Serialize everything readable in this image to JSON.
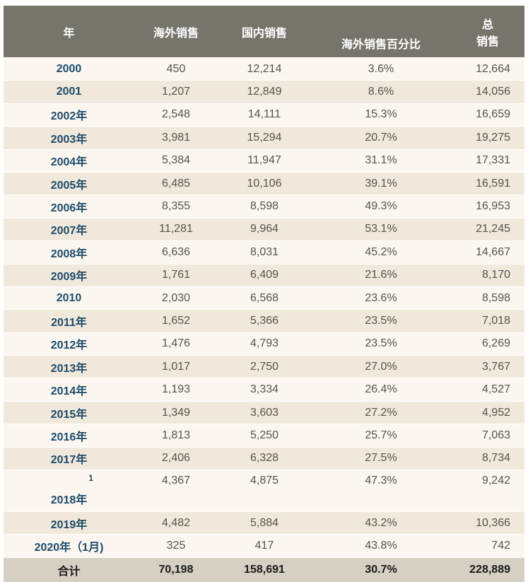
{
  "headers": {
    "year": "年",
    "overseas": "海外销售",
    "domestic": "国内销售",
    "pct": "海外销售百分比",
    "total_line1": "总",
    "total_line2": "销售"
  },
  "rows": [
    {
      "year": "2000",
      "overseas": "450",
      "domestic": "12,214",
      "pct": "3.6%",
      "total": "12,664"
    },
    {
      "year": "2001",
      "overseas": "1,207",
      "domestic": "12,849",
      "pct": "8.6%",
      "total": "14,056"
    },
    {
      "year": "2002年",
      "overseas": "2,548",
      "domestic": "14,111",
      "pct": "15.3%",
      "total": "16,659"
    },
    {
      "year": "2003年",
      "overseas": "3,981",
      "domestic": "15,294",
      "pct": "20.7%",
      "total": "19,275"
    },
    {
      "year": "2004年",
      "overseas": "5,384",
      "domestic": "11,947",
      "pct": "31.1%",
      "total": "17,331"
    },
    {
      "year": "2005年",
      "overseas": "6,485",
      "domestic": "10,106",
      "pct": "39.1%",
      "total": "16,591"
    },
    {
      "year": "2006年",
      "overseas": "8,355",
      "domestic": "8,598",
      "pct": "49.3%",
      "total": "16,953"
    },
    {
      "year": "2007年",
      "overseas": "11,281",
      "domestic": "9,964",
      "pct": "53.1%",
      "total": "21,245"
    },
    {
      "year": "2008年",
      "overseas": "6,636",
      "domestic": "8,031",
      "pct": "45.2%",
      "total": "14,667"
    },
    {
      "year": "2009年",
      "overseas": "1,761",
      "domestic": "6,409",
      "pct": "21.6%",
      "total": "8,170"
    },
    {
      "year": "2010",
      "overseas": "2,030",
      "domestic": "6,568",
      "pct": "23.6%",
      "total": "8,598"
    },
    {
      "year": "2011年",
      "overseas": "1,652",
      "domestic": "5,366",
      "pct": "23.5%",
      "total": "7,018"
    },
    {
      "year": "2012年",
      "overseas": "1,476",
      "domestic": "4,793",
      "pct": "23.5%",
      "total": "6,269"
    },
    {
      "year": "2013年",
      "overseas": "1,017",
      "domestic": "2,750",
      "pct": "27.0%",
      "total": "3,767"
    },
    {
      "year": "2014年",
      "overseas": "1,193",
      "domestic": "3,334",
      "pct": "26.4%",
      "total": "4,527"
    },
    {
      "year": "2015年",
      "overseas": "1,349",
      "domestic": "3,603",
      "pct": "27.2%",
      "total": "4,952"
    },
    {
      "year": "2016年",
      "overseas": "1,813",
      "domestic": "5,250",
      "pct": "25.7%",
      "total": "7,063"
    },
    {
      "year": "2017年",
      "overseas": "2,406",
      "domestic": "6,328",
      "pct": "27.5%",
      "total": "8,734"
    },
    {
      "year": "2018年",
      "footnote": "1",
      "overseas": "4,367",
      "domestic": "4,875",
      "pct": "47.3%",
      "total": "9,242"
    },
    {
      "year": "2019年",
      "overseas": "4,482",
      "domestic": "5,884",
      "pct": "43.2%",
      "total": "10,366"
    },
    {
      "year": "2020年（1月)",
      "overseas": "325",
      "domestic": "417",
      "pct": "43.8%",
      "total": "742"
    }
  ],
  "total_row": {
    "label": "合计",
    "overseas": "70,198",
    "domestic": "158,691",
    "pct": "30.7%",
    "total": "228,889"
  }
}
